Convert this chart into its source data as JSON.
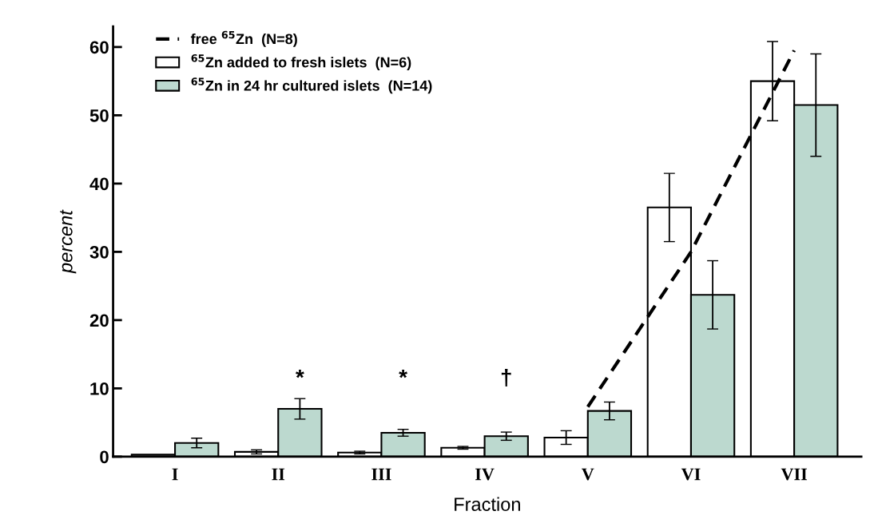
{
  "chart_data": {
    "type": "bar",
    "xlabel": "Fraction",
    "ylabel": "percent",
    "categories": [
      "I",
      "II",
      "III",
      "IV",
      "V",
      "VI",
      "VII"
    ],
    "series": [
      {
        "name": "$^{65}$Zn added to fresh islets  (N=6)",
        "color": "#ffffff",
        "values": [
          0.3,
          0.7,
          0.6,
          1.3,
          2.8,
          36.5,
          55.0
        ],
        "errors": [
          null,
          0.3,
          0.2,
          0.2,
          1.0,
          5.0,
          5.8
        ]
      },
      {
        "name": "$^{65}$Zn in 24 hr cultured islets  (N=14)",
        "color": "#bcd9cf",
        "values": [
          2.0,
          7.0,
          3.5,
          3.0,
          6.7,
          23.7,
          51.5
        ],
        "errors": [
          0.7,
          1.5,
          0.5,
          0.6,
          1.3,
          5.0,
          7.5
        ]
      },
      {
        "name": "free $^{65}$Zn  (N=8)",
        "type": "line",
        "color": "#000000",
        "line_style": "dashed",
        "values": [
          null,
          null,
          null,
          null,
          7.3,
          30,
          59.5
        ]
      }
    ],
    "annotations": [
      "*",
      "*",
      "†"
    ],
    "ylim": [
      0,
      63
    ],
    "yticks": [
      0,
      10,
      20,
      30,
      40,
      50,
      60
    ],
    "grid": false,
    "legend": "top left"
  }
}
